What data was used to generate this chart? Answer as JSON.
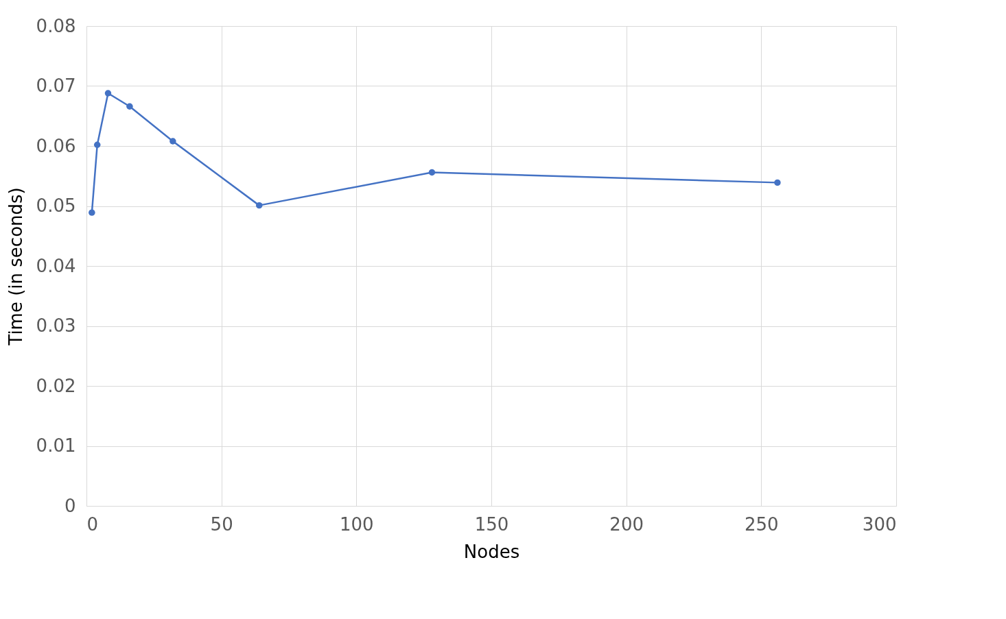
{
  "chart_data": {
    "type": "line",
    "xlabel": "Nodes",
    "ylabel": "Time (in seconds)",
    "x": [
      2,
      4,
      8,
      16,
      32,
      64,
      128,
      256
    ],
    "series": [
      {
        "color": "#4472c4",
        "values": [
          0.0489,
          0.0602,
          0.0688,
          0.0666,
          0.0608,
          0.0501,
          0.0556,
          0.0539
        ]
      }
    ],
    "xlim": [
      0,
      300
    ],
    "xticks": [
      0,
      50,
      100,
      150,
      200,
      250,
      300
    ],
    "ylim": [
      0,
      0.08
    ],
    "yticks": [
      0,
      0.01,
      0.02,
      0.03,
      0.04,
      0.05,
      0.06,
      0.07,
      0.08
    ],
    "grid": true,
    "marker": "circle",
    "line_style": "solid",
    "legend": false
  }
}
